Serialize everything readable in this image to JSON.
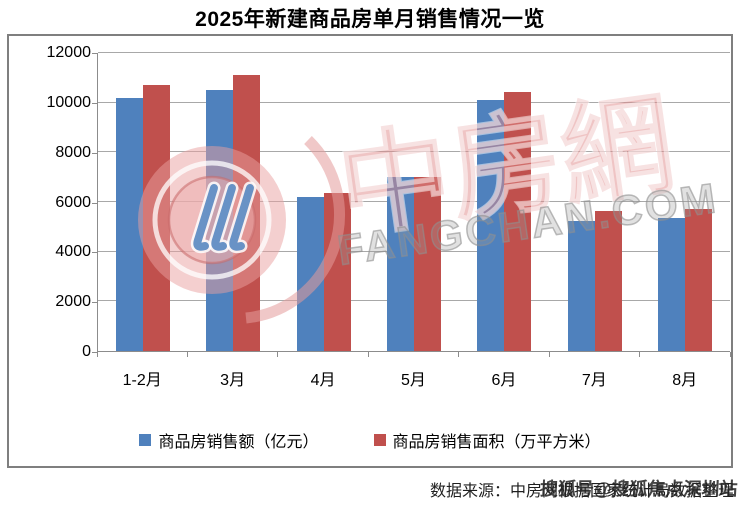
{
  "title": "2025年新建商品房单月销售情况一览",
  "source_note": {
    "text": "数据来源：中房网根据国家统计局数据整理"
  },
  "watermark": {
    "cn": "中房網",
    "en": "FANGCHAN.COM",
    "overlay": "搜狐号@搜狐焦点深圳站"
  },
  "colors": {
    "series_sales": "#4F81BD",
    "series_area": "#C0504D",
    "gridline": "#a8a8a8",
    "axis": "#8c8c8c",
    "watermark_pink": "#E08A8A",
    "watermark_gray": "#8F8F8F"
  },
  "chart_data": {
    "type": "bar",
    "title": "2025年新建商品房单月销售情况一览",
    "categories": [
      "1-2月",
      "3月",
      "4月",
      "5月",
      "6月",
      "7月",
      "8月"
    ],
    "series": [
      {
        "name": "商品房销售额（亿元）",
        "color": "#4F81BD",
        "values": [
          10200,
          10500,
          6200,
          7000,
          10100,
          5250,
          5350
        ]
      },
      {
        "name": "商品房销售面积（万平方米）",
        "color": "#C0504D",
        "values": [
          10700,
          11100,
          6350,
          7000,
          10450,
          5650,
          5700
        ]
      }
    ],
    "xlabel": "",
    "ylabel": "",
    "ylim": [
      0,
      12000
    ],
    "yticks": [
      0,
      2000,
      4000,
      6000,
      8000,
      10000,
      12000
    ],
    "grid": true,
    "legend_position": "bottom"
  }
}
